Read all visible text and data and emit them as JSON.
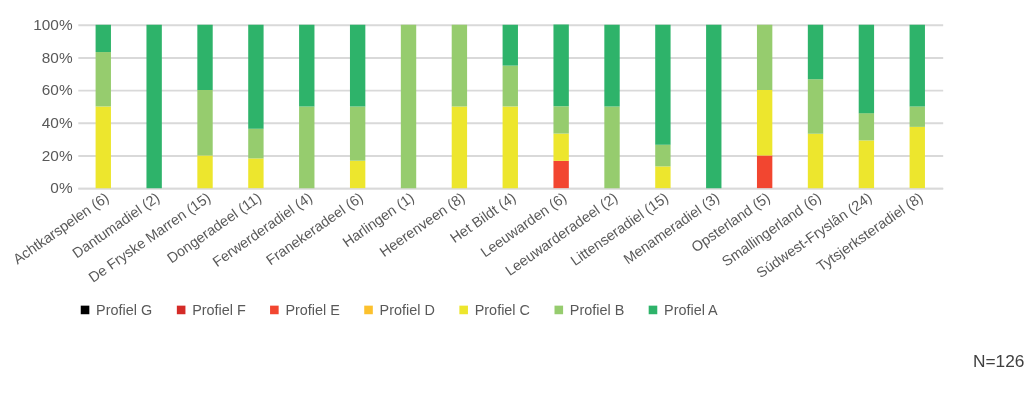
{
  "chart_data": {
    "type": "bar",
    "stacked": true,
    "categories": [
      "Achtkarspelen (6)",
      "Dantumadiel (2)",
      "De Fryske Marren (15)",
      "Dongeradeel (11)",
      "Ferwerderadiel (4)",
      "Franekeradeel (6)",
      "Harlingen (1)",
      "Heerenveen (8)",
      "Het Bildt (4)",
      "Leeuwarden (6)",
      "Leeuwarderadeel (2)",
      "Littenseradiel (15)",
      "Menameradiel (3)",
      "Opsterland (5)",
      "Smallingerland (6)",
      "Súdwest-Fryslân (24)",
      "Tytsjerksteradiel (8)"
    ],
    "series": [
      {
        "name": "Profiel G",
        "color": "#000000",
        "values": [
          0,
          0,
          0,
          0,
          0,
          0,
          0,
          0,
          0,
          0,
          0,
          0,
          0,
          0,
          0,
          0,
          0
        ]
      },
      {
        "name": "Profiel F",
        "color": "#d42b27",
        "values": [
          0,
          0,
          0,
          0,
          0,
          0,
          0,
          0,
          0,
          0,
          0,
          0,
          0,
          0,
          0,
          0,
          0
        ]
      },
      {
        "name": "Profiel E",
        "color": "#f24630",
        "values": [
          0,
          0,
          0,
          0,
          0,
          0,
          0,
          0,
          0,
          16.7,
          0,
          0,
          0,
          20,
          0,
          0,
          0
        ]
      },
      {
        "name": "Profiel D",
        "color": "#fcc12d",
        "values": [
          0,
          0,
          0,
          0,
          0,
          0,
          0,
          0,
          0,
          0,
          0,
          0,
          0,
          0,
          0,
          0,
          0
        ]
      },
      {
        "name": "Profiel C",
        "color": "#ede62d",
        "values": [
          50,
          0,
          20,
          18.2,
          0,
          16.7,
          0,
          50,
          50,
          16.7,
          0,
          13.3,
          0,
          40,
          33.3,
          29.2,
          37.5
        ]
      },
      {
        "name": "Profiel B",
        "color": "#96cc6e",
        "values": [
          33.3,
          0,
          40,
          18.2,
          50,
          33.3,
          100,
          50,
          25,
          16.7,
          50,
          13.3,
          0,
          40,
          33.3,
          16.7,
          12.5
        ]
      },
      {
        "name": "Profiel A",
        "color": "#2eb36a",
        "values": [
          16.7,
          100,
          40,
          63.6,
          50,
          50,
          0,
          0,
          25,
          50,
          50,
          73.4,
          100,
          0,
          33.4,
          54.1,
          50
        ]
      }
    ],
    "ylim": [
      0,
      100
    ],
    "yticks": [
      {
        "value": 0,
        "label": "0%"
      },
      {
        "value": 20,
        "label": "20%"
      },
      {
        "value": 40,
        "label": "40%"
      },
      {
        "value": 60,
        "label": "60%"
      },
      {
        "value": 80,
        "label": "80%"
      },
      {
        "value": 100,
        "label": "100%"
      }
    ],
    "grid": "y",
    "legend": "bottom",
    "annotations": [
      "N=126"
    ]
  }
}
